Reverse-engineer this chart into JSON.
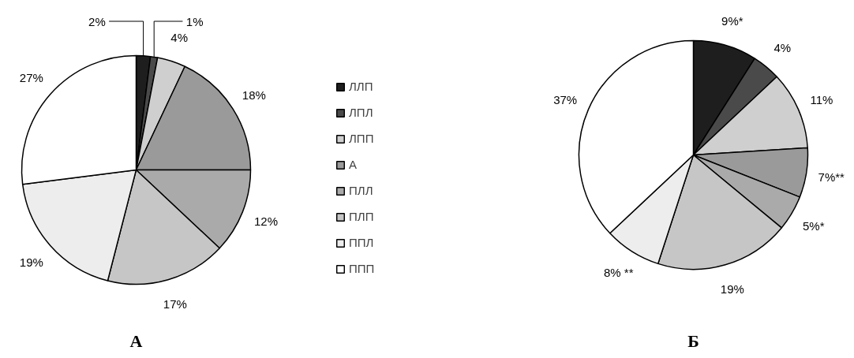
{
  "chart_data": [
    {
      "type": "pie",
      "title": "А",
      "categories": [
        "ЛЛП",
        "ЛПЛ",
        "ЛПП",
        "А",
        "ПЛЛ",
        "ПЛП",
        "ППЛ",
        "ППП"
      ],
      "values": [
        2,
        1,
        4,
        18,
        12,
        17,
        19,
        27
      ],
      "value_labels": [
        "2%",
        "1%",
        "4%",
        "18%",
        "12%",
        "17%",
        "19%",
        "27%"
      ],
      "colors": [
        "#1e1e1e",
        "#4a4a4a",
        "#cfcfcf",
        "#9a9a9a",
        "#aaaaaa",
        "#c6c6c6",
        "#ededed",
        "#ffffff"
      ],
      "legend": "right"
    },
    {
      "type": "pie",
      "title": "Б",
      "categories": [
        null,
        null,
        null,
        null,
        null,
        null,
        null,
        null
      ],
      "values": [
        9,
        4,
        11,
        7,
        5,
        19,
        8,
        37
      ],
      "value_labels": [
        "9%*",
        "4%",
        "11%",
        "7%**",
        "5%*",
        "19%",
        "8% **",
        "37%"
      ],
      "colors": [
        "#1e1e1e",
        "#4a4a4a",
        "#cfcfcf",
        "#9a9a9a",
        "#aaaaaa",
        "#c6c6c6",
        "#ededed",
        "#ffffff"
      ]
    }
  ]
}
